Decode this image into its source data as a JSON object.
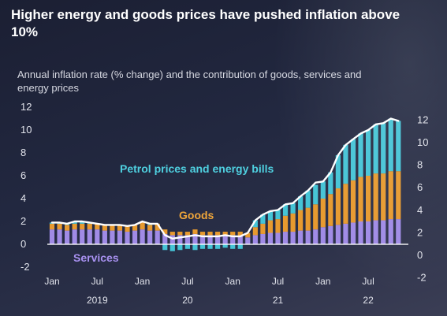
{
  "header": {
    "title": "Higher energy and goods prices have pushed inflation above 10%",
    "subtitle": "Annual inflation rate (% change) and the contribution of goods, services and energy prices"
  },
  "chart_data": {
    "type": "bar",
    "stacked": true,
    "title": "Higher energy and goods prices have pushed inflation above 10%",
    "subtitle": "Annual inflation rate (% change) and the contribution of goods, services and energy prices",
    "ylim": [
      -2,
      12
    ],
    "yticks": [
      -2,
      0,
      2,
      4,
      6,
      8,
      10,
      12
    ],
    "right_yticks": [
      -2,
      0,
      2,
      4,
      6,
      8,
      10,
      12
    ],
    "x_tick_labels": [
      {
        "index": 0,
        "label": "Jan"
      },
      {
        "index": 6,
        "label": "Jul"
      },
      {
        "index": 12,
        "label": "Jan"
      },
      {
        "index": 18,
        "label": "Jul"
      },
      {
        "index": 24,
        "label": "Jan"
      },
      {
        "index": 30,
        "label": "Jul"
      },
      {
        "index": 36,
        "label": "Jan"
      },
      {
        "index": 42,
        "label": "Jul"
      }
    ],
    "year_labels": [
      {
        "index": 6,
        "label": "2019"
      },
      {
        "index": 18,
        "label": "20"
      },
      {
        "index": 30,
        "label": "21"
      },
      {
        "index": 42,
        "label": "22"
      }
    ],
    "categories": [
      "Jan 2019",
      "Feb 2019",
      "Mar 2019",
      "Apr 2019",
      "May 2019",
      "Jun 2019",
      "Jul 2019",
      "Aug 2019",
      "Sep 2019",
      "Oct 2019",
      "Nov 2019",
      "Dec 2019",
      "Jan 2020",
      "Feb 2020",
      "Mar 2020",
      "Apr 2020",
      "May 2020",
      "Jun 2020",
      "Jul 2020",
      "Aug 2020",
      "Sep 2020",
      "Oct 2020",
      "Nov 2020",
      "Dec 2020",
      "Jan 2021",
      "Feb 2021",
      "Mar 2021",
      "Apr 2021",
      "May 2021",
      "Jun 2021",
      "Jul 2021",
      "Aug 2021",
      "Sep 2021",
      "Oct 2021",
      "Nov 2021",
      "Dec 2021",
      "Jan 2022",
      "Feb 2022",
      "Mar 2022",
      "Apr 2022",
      "May 2022",
      "Jun 2022",
      "Jul 2022",
      "Aug 2022",
      "Sep 2022",
      "Oct 2022",
      "Nov 2022"
    ],
    "series": [
      {
        "name": "Services",
        "color": "#a08be6",
        "values": [
          1.3,
          1.3,
          1.2,
          1.3,
          1.3,
          1.3,
          1.3,
          1.2,
          1.2,
          1.2,
          1.1,
          1.2,
          1.3,
          1.2,
          1.2,
          0.9,
          0.8,
          0.8,
          0.8,
          0.9,
          0.8,
          0.8,
          0.8,
          0.8,
          0.8,
          0.7,
          0.6,
          0.8,
          0.9,
          1.0,
          1.0,
          1.1,
          1.1,
          1.2,
          1.2,
          1.3,
          1.5,
          1.6,
          1.7,
          1.8,
          1.9,
          2.0,
          2.0,
          2.1,
          2.1,
          2.2,
          2.2
        ]
      },
      {
        "name": "Goods",
        "color": "#e79a2f",
        "values": [
          0.5,
          0.5,
          0.5,
          0.5,
          0.5,
          0.5,
          0.5,
          0.5,
          0.5,
          0.5,
          0.5,
          0.5,
          0.6,
          0.5,
          0.6,
          0.4,
          0.3,
          0.3,
          0.3,
          0.4,
          0.3,
          0.3,
          0.3,
          0.3,
          0.3,
          0.4,
          0.4,
          0.7,
          0.9,
          1.1,
          1.2,
          1.4,
          1.6,
          1.8,
          2.0,
          2.2,
          2.5,
          2.8,
          3.2,
          3.5,
          3.7,
          3.9,
          4.0,
          4.1,
          4.1,
          4.2,
          4.2
        ]
      },
      {
        "name": "Petrol prices and energy bills",
        "color": "#45c4d6",
        "values": [
          0.1,
          0.1,
          0.1,
          0.2,
          0.2,
          0.1,
          0.0,
          0.0,
          0.0,
          0.0,
          0.0,
          0.0,
          0.1,
          0.1,
          0.0,
          -0.5,
          -0.6,
          -0.5,
          -0.4,
          -0.5,
          -0.4,
          -0.4,
          -0.4,
          -0.3,
          -0.4,
          -0.4,
          0.0,
          0.6,
          0.8,
          0.8,
          0.8,
          1.0,
          0.9,
          1.2,
          1.5,
          1.7,
          1.5,
          1.9,
          2.9,
          3.4,
          3.6,
          3.8,
          4.0,
          4.3,
          4.4,
          4.6,
          4.4
        ]
      }
    ],
    "total": {
      "name": "Annual inflation rate",
      "color": "#ffffff",
      "values": [
        1.9,
        1.9,
        1.8,
        2.0,
        2.0,
        1.9,
        1.8,
        1.7,
        1.7,
        1.7,
        1.6,
        1.7,
        2.0,
        1.8,
        1.8,
        0.8,
        0.5,
        0.6,
        0.7,
        0.8,
        0.7,
        0.7,
        0.7,
        0.8,
        0.7,
        0.7,
        1.0,
        2.1,
        2.6,
        2.9,
        3.0,
        3.5,
        3.6,
        4.2,
        4.7,
        5.4,
        5.5,
        6.3,
        7.8,
        8.7,
        9.2,
        9.7,
        10.0,
        10.5,
        10.6,
        11.0,
        10.8
      ]
    },
    "series_labels": {
      "petrol": "Petrol prices and energy bills",
      "goods": "Goods",
      "services": "Services"
    },
    "grid": false,
    "legend": "inline labels"
  }
}
